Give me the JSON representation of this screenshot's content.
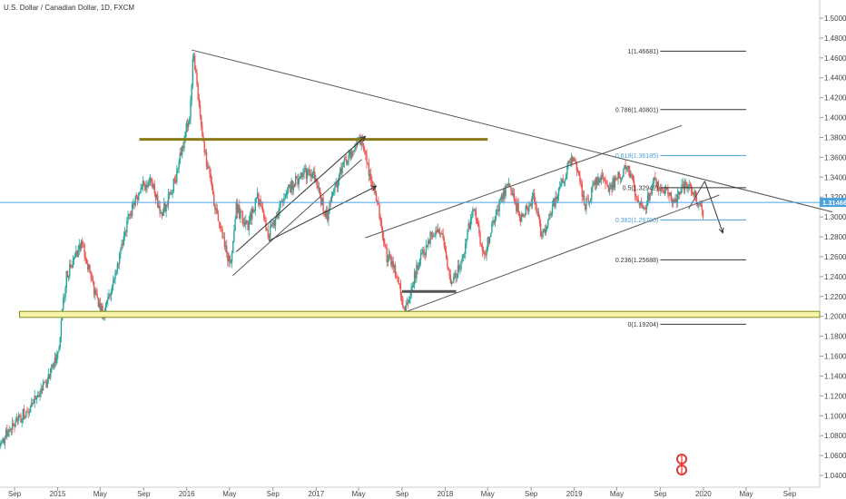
{
  "symbol_title": "U.S. Dollar / Canadian Dollar, 1D, FXCM",
  "current_price": "1.31466",
  "colors": {
    "up": "#26a69a",
    "down": "#ef5350",
    "resistance": "#8a7a1c",
    "support_fill": "#f7f5a8",
    "support_border": "#8a8a1c",
    "fib_black": "#333333",
    "fib_blue": "#4a9fd8",
    "price_line": "#4aa3df",
    "trend_line": "#555555"
  },
  "icons": [
    "logo-icon"
  ],
  "chart_data": {
    "type": "candlestick",
    "y_axis_position": "right",
    "ylim": [
      1.03,
      1.52
    ],
    "yticks": [
      "1.04000",
      "1.06000",
      "1.08000",
      "1.10000",
      "1.12000",
      "1.14000",
      "1.16000",
      "1.18000",
      "1.20000",
      "1.22000",
      "1.24000",
      "1.26000",
      "1.28000",
      "1.30000",
      "1.32000",
      "1.34000",
      "1.36000",
      "1.38000",
      "1.40000",
      "1.42000",
      "1.44000",
      "1.46000",
      "1.48000",
      "1.50000"
    ],
    "x_ticks": [
      "Sep",
      "2015",
      "May",
      "Sep",
      "2016",
      "May",
      "Sep",
      "2017",
      "May",
      "Sep",
      "2018",
      "May",
      "Sep",
      "2019",
      "May",
      "Sep",
      "2020",
      "May",
      "Sep"
    ],
    "x_tick_dates": [
      "2014-09-01",
      "2015-01-01",
      "2015-05-01",
      "2015-09-01",
      "2016-01-01",
      "2016-05-01",
      "2016-09-01",
      "2017-01-01",
      "2017-05-01",
      "2017-09-01",
      "2018-01-01",
      "2018-05-01",
      "2018-09-01",
      "2019-01-01",
      "2019-05-01",
      "2019-09-01",
      "2020-01-01",
      "2020-05-01",
      "2020-09-01"
    ],
    "price_path": [
      [
        "2014-07-15",
        1.07
      ],
      [
        "2014-09-01",
        1.09
      ],
      [
        "2014-10-15",
        1.11
      ],
      [
        "2014-12-01",
        1.135
      ],
      [
        "2015-01-01",
        1.16
      ],
      [
        "2015-01-25",
        1.24
      ],
      [
        "2015-03-10",
        1.275
      ],
      [
        "2015-04-10",
        1.23
      ],
      [
        "2015-05-10",
        1.2
      ],
      [
        "2015-06-10",
        1.24
      ],
      [
        "2015-07-20",
        1.3
      ],
      [
        "2015-08-25",
        1.33
      ],
      [
        "2015-09-25",
        1.335
      ],
      [
        "2015-10-20",
        1.3
      ],
      [
        "2015-12-01",
        1.34
      ],
      [
        "2016-01-10",
        1.405
      ],
      [
        "2016-01-20",
        1.468
      ],
      [
        "2016-02-10",
        1.39
      ],
      [
        "2016-03-10",
        1.33
      ],
      [
        "2016-04-10",
        1.28
      ],
      [
        "2016-05-03",
        1.25
      ],
      [
        "2016-05-20",
        1.31
      ],
      [
        "2016-06-20",
        1.29
      ],
      [
        "2016-07-20",
        1.32
      ],
      [
        "2016-08-20",
        1.28
      ],
      [
        "2016-09-20",
        1.31
      ],
      [
        "2016-10-20",
        1.33
      ],
      [
        "2016-12-01",
        1.345
      ],
      [
        "2016-12-25",
        1.34
      ],
      [
        "2017-01-31",
        1.3
      ],
      [
        "2017-03-10",
        1.345
      ],
      [
        "2017-05-05",
        1.379
      ],
      [
        "2017-06-20",
        1.32
      ],
      [
        "2017-07-20",
        1.26
      ],
      [
        "2017-08-10",
        1.25
      ],
      [
        "2017-09-08",
        1.206
      ],
      [
        "2017-10-15",
        1.25
      ],
      [
        "2017-11-20",
        1.28
      ],
      [
        "2017-12-20",
        1.285
      ],
      [
        "2018-01-20",
        1.232
      ],
      [
        "2018-02-20",
        1.26
      ],
      [
        "2018-03-20",
        1.31
      ],
      [
        "2018-04-20",
        1.26
      ],
      [
        "2018-05-20",
        1.3
      ],
      [
        "2018-06-27",
        1.335
      ],
      [
        "2018-08-01",
        1.3
      ],
      [
        "2018-09-10",
        1.32
      ],
      [
        "2018-10-01",
        1.28
      ],
      [
        "2018-11-10",
        1.32
      ],
      [
        "2018-12-31",
        1.365
      ],
      [
        "2019-01-31",
        1.31
      ],
      [
        "2019-03-10",
        1.34
      ],
      [
        "2019-04-10",
        1.33
      ],
      [
        "2019-05-30",
        1.35
      ],
      [
        "2019-07-15",
        1.305
      ],
      [
        "2019-08-15",
        1.335
      ],
      [
        "2019-09-20",
        1.325
      ],
      [
        "2019-10-15",
        1.315
      ],
      [
        "2019-11-10",
        1.335
      ],
      [
        "2019-12-10",
        1.32
      ],
      [
        "2019-12-31",
        1.305
      ]
    ],
    "fibonacci_levels": [
      {
        "label": "1(1.46681)",
        "value": 1.46681,
        "color": "black"
      },
      {
        "label": "0.786(1.40801)",
        "value": 1.40801,
        "color": "black"
      },
      {
        "label": "0.618(1.36185)",
        "value": 1.36185,
        "color": "blue"
      },
      {
        "label": "0.5(1.32942)",
        "value": 1.32942,
        "color": "black"
      },
      {
        "label": "0.382(1.29700)",
        "value": 1.297,
        "color": "blue"
      },
      {
        "label": "0.236(1.25688)",
        "value": 1.25688,
        "color": "black"
      },
      {
        "label": "0(1.19204)",
        "value": 1.19204,
        "color": "black"
      }
    ],
    "fib_range": {
      "x_start": "2019-09-01",
      "x_end": "2020-05-01"
    },
    "current_price_value": 1.31466,
    "resistance_line": {
      "y": 1.378,
      "x_start": "2015-08-20",
      "x_end": "2018-05-01"
    },
    "support_zone": {
      "y_top": 1.205,
      "y_bottom": 1.199,
      "x_start": "2014-09-15",
      "x_end": "2020-12-31"
    },
    "short_support": {
      "y": 1.225,
      "x_start": "2017-09-01",
      "x_end": "2018-02-01"
    },
    "drawings": [
      {
        "kind": "line",
        "from": [
          "2016-01-15",
          1.468
        ],
        "to": [
          "2020-12-31",
          1.305
        ]
      },
      {
        "kind": "line",
        "from": [
          "2016-05-10",
          1.241
        ],
        "to": [
          "2017-05-10",
          1.358
        ]
      },
      {
        "kind": "arrow",
        "from": [
          "2016-05-20",
          1.265
        ],
        "to": [
          "2017-05-20",
          1.381
        ]
      },
      {
        "kind": "arrow",
        "from": [
          "2016-08-20",
          1.276
        ],
        "to": [
          "2017-06-20",
          1.331
        ]
      },
      {
        "kind": "line",
        "from": [
          "2017-09-15",
          1.205
        ],
        "to": [
          "2020-02-15",
          1.322
        ]
      },
      {
        "kind": "line",
        "from": [
          "2017-05-20",
          1.279
        ],
        "to": [
          "2019-11-01",
          1.392
        ]
      },
      {
        "kind": "line",
        "from": [
          "2019-11-20",
          1.308
        ],
        "to": [
          "2020-01-05",
          1.336
        ]
      },
      {
        "kind": "arrow",
        "from": [
          "2020-01-05",
          1.336
        ],
        "to": [
          "2020-02-25",
          1.284
        ]
      }
    ]
  }
}
